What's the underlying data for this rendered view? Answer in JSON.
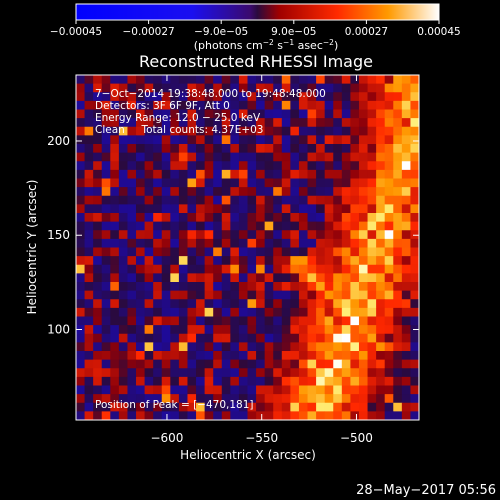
{
  "chart_data": {
    "type": "heatmap",
    "title": "Reconstructed RHESSI Image",
    "xlabel": "Heliocentric X (arcsec)",
    "ylabel": "Heliocentric Y (arcsec)",
    "xlim": [
      -648,
      -467
    ],
    "ylim": [
      52,
      235
    ],
    "xticks": [
      -600,
      -550,
      -500
    ],
    "xtick_labels": [
      "−600",
      "−550",
      "−500"
    ],
    "yticks": [
      100,
      150,
      200
    ],
    "ytick_labels": [
      "100",
      "150",
      "200"
    ],
    "colorbar": {
      "range": [
        -0.00045,
        0.00045
      ],
      "ticks": [
        -0.00045,
        -0.00027,
        -9e-05,
        9e-05,
        0.00027,
        0.00045
      ],
      "tick_labels": [
        "−0.00045",
        "−0.00027",
        "−9.0e−05",
        "9.0e−05",
        "0.00027",
        "0.00045"
      ],
      "unit_parts": [
        "(photons cm",
        "−2",
        " s",
        "−1",
        " asec",
        "−2",
        ")"
      ]
    },
    "annotations": [
      "7−Oct−2014 19:38:48.000 to 19:48:48.000",
      "Detectors: 3F 6F 9F, Att 0",
      "Energy Range: 12.0 − 25.0 keV",
      "Clean     Total counts: 4.37E+03"
    ],
    "peak_label": "Position of Peak = [−470,181]",
    "peak_position": [
      -470,
      181
    ],
    "background_color": "#000000",
    "colormap": [
      "#0000ff",
      "#6a0dd8",
      "#3a0a6e",
      "#ff0000",
      "#ff8000",
      "#ffff60",
      "#ffffff"
    ]
  },
  "footer": {
    "timestamp": "28−May−2017 05:56"
  }
}
